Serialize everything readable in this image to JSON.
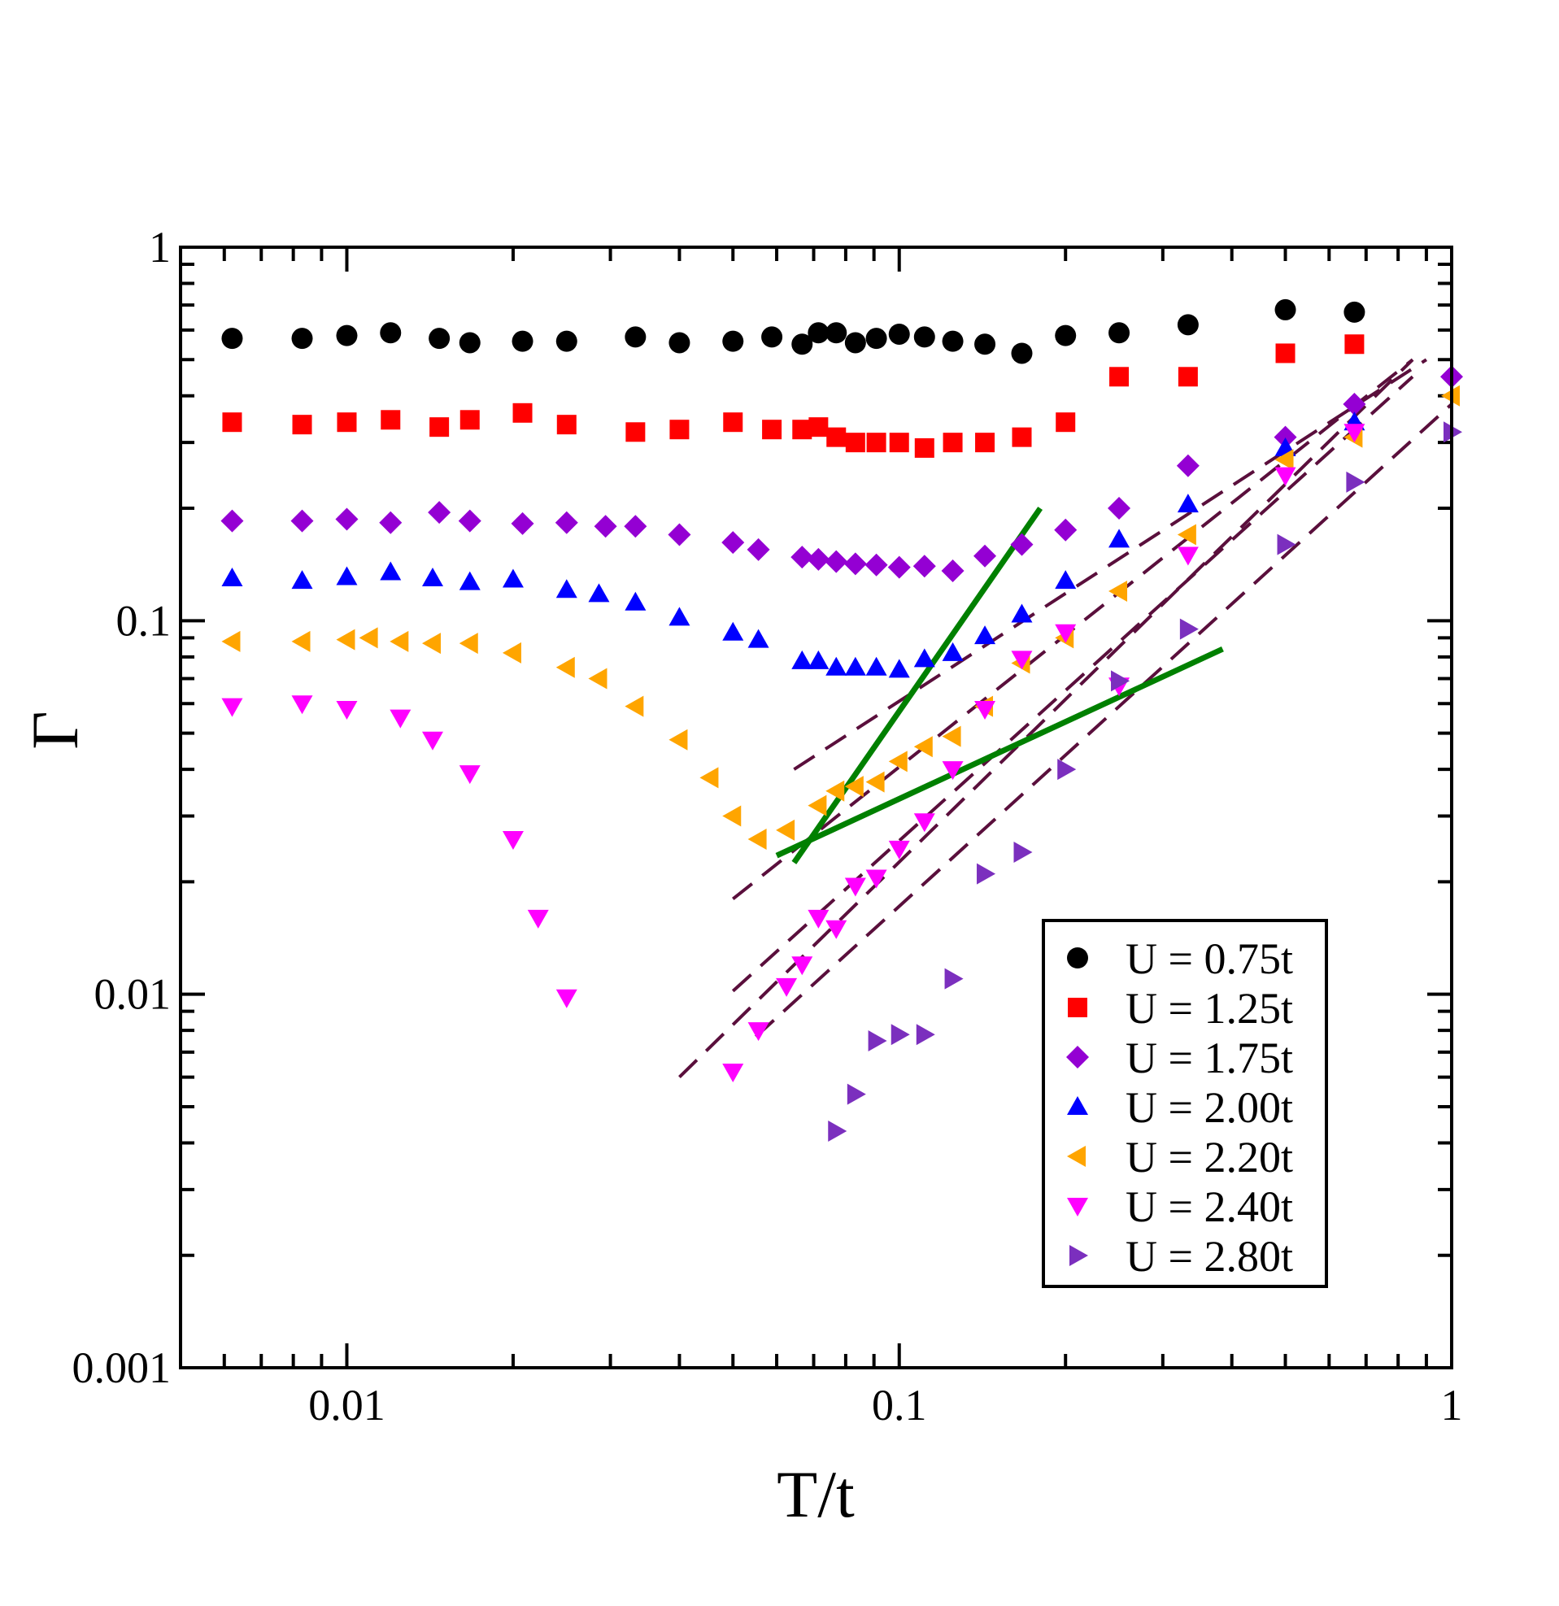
{
  "chart_data": {
    "type": "scatter",
    "title": "",
    "xlabel": "T/t",
    "ylabel": "Γ",
    "xscale": "log",
    "yscale": "log",
    "xlim": [
      0.005,
      1
    ],
    "ylim": [
      0.001,
      1
    ],
    "x_ticks": [
      {
        "value": 0.01,
        "label": "0.01"
      },
      {
        "value": 0.1,
        "label": "0.1"
      },
      {
        "value": 1,
        "label": "1"
      }
    ],
    "y_ticks": [
      {
        "value": 0.001,
        "label": "0.001"
      },
      {
        "value": 0.01,
        "label": "0.01"
      },
      {
        "value": 0.1,
        "label": "0.1"
      },
      {
        "value": 1,
        "label": "1"
      }
    ],
    "legend_position": "bottom-right",
    "series": [
      {
        "name": "U = 0.75t",
        "marker": "circle",
        "color": "#000000",
        "points": [
          [
            0.0062,
            0.57
          ],
          [
            0.0083,
            0.57
          ],
          [
            0.01,
            0.58
          ],
          [
            0.012,
            0.59
          ],
          [
            0.0147,
            0.57
          ],
          [
            0.0167,
            0.555
          ],
          [
            0.0208,
            0.56
          ],
          [
            0.025,
            0.56
          ],
          [
            0.0333,
            0.575
          ],
          [
            0.04,
            0.555
          ],
          [
            0.05,
            0.56
          ],
          [
            0.0588,
            0.575
          ],
          [
            0.0667,
            0.55
          ],
          [
            0.0714,
            0.59
          ],
          [
            0.0769,
            0.59
          ],
          [
            0.0833,
            0.555
          ],
          [
            0.0909,
            0.57
          ],
          [
            0.1,
            0.585
          ],
          [
            0.1111,
            0.575
          ],
          [
            0.125,
            0.56
          ],
          [
            0.1429,
            0.55
          ],
          [
            0.1667,
            0.52
          ],
          [
            0.2,
            0.58
          ],
          [
            0.25,
            0.59
          ],
          [
            0.3333,
            0.62
          ],
          [
            0.5,
            0.68
          ],
          [
            0.6667,
            0.67
          ]
        ]
      },
      {
        "name": "U = 1.25t",
        "marker": "square",
        "color": "#ff0000",
        "points": [
          [
            0.0062,
            0.34
          ],
          [
            0.0083,
            0.335
          ],
          [
            0.01,
            0.34
          ],
          [
            0.012,
            0.345
          ],
          [
            0.0147,
            0.33
          ],
          [
            0.0167,
            0.345
          ],
          [
            0.0208,
            0.36
          ],
          [
            0.025,
            0.335
          ],
          [
            0.0333,
            0.32
          ],
          [
            0.04,
            0.325
          ],
          [
            0.05,
            0.34
          ],
          [
            0.0588,
            0.325
          ],
          [
            0.0667,
            0.325
          ],
          [
            0.0714,
            0.33
          ],
          [
            0.0769,
            0.31
          ],
          [
            0.0833,
            0.3
          ],
          [
            0.0909,
            0.3
          ],
          [
            0.1,
            0.3
          ],
          [
            0.1111,
            0.29
          ],
          [
            0.125,
            0.3
          ],
          [
            0.1429,
            0.3
          ],
          [
            0.1667,
            0.31
          ],
          [
            0.2,
            0.34
          ],
          [
            0.25,
            0.45
          ],
          [
            0.3333,
            0.45
          ],
          [
            0.5,
            0.52
          ],
          [
            0.6667,
            0.55
          ]
        ]
      },
      {
        "name": "U = 1.75t",
        "marker": "diamond",
        "color": "#9400d3",
        "points": [
          [
            0.0062,
            0.185
          ],
          [
            0.0083,
            0.185
          ],
          [
            0.01,
            0.187
          ],
          [
            0.012,
            0.183
          ],
          [
            0.0147,
            0.195
          ],
          [
            0.0167,
            0.185
          ],
          [
            0.0208,
            0.182
          ],
          [
            0.025,
            0.183
          ],
          [
            0.0294,
            0.179
          ],
          [
            0.0333,
            0.179
          ],
          [
            0.04,
            0.17
          ],
          [
            0.05,
            0.162
          ],
          [
            0.0556,
            0.155
          ],
          [
            0.0667,
            0.148
          ],
          [
            0.0714,
            0.146
          ],
          [
            0.0769,
            0.144
          ],
          [
            0.0833,
            0.142
          ],
          [
            0.0909,
            0.141
          ],
          [
            0.1,
            0.139
          ],
          [
            0.1111,
            0.14
          ],
          [
            0.125,
            0.136
          ],
          [
            0.1429,
            0.149
          ],
          [
            0.1667,
            0.16
          ],
          [
            0.2,
            0.175
          ],
          [
            0.25,
            0.2
          ],
          [
            0.3333,
            0.26
          ],
          [
            0.5,
            0.31
          ],
          [
            0.6667,
            0.38
          ],
          [
            1.0,
            0.45
          ]
        ]
      },
      {
        "name": "U = 2.00t",
        "marker": "triangle-up",
        "color": "#0000ff",
        "points": [
          [
            0.0062,
            0.13
          ],
          [
            0.0083,
            0.128
          ],
          [
            0.01,
            0.131
          ],
          [
            0.012,
            0.135
          ],
          [
            0.0143,
            0.13
          ],
          [
            0.0167,
            0.127
          ],
          [
            0.02,
            0.129
          ],
          [
            0.025,
            0.121
          ],
          [
            0.0286,
            0.118
          ],
          [
            0.0333,
            0.112
          ],
          [
            0.04,
            0.102
          ],
          [
            0.05,
            0.093
          ],
          [
            0.0556,
            0.089
          ],
          [
            0.0667,
            0.078
          ],
          [
            0.0714,
            0.078
          ],
          [
            0.0769,
            0.075
          ],
          [
            0.0833,
            0.075
          ],
          [
            0.0909,
            0.075
          ],
          [
            0.1,
            0.074
          ],
          [
            0.1111,
            0.079
          ],
          [
            0.125,
            0.082
          ],
          [
            0.1429,
            0.091
          ],
          [
            0.1667,
            0.104
          ],
          [
            0.2,
            0.128
          ],
          [
            0.25,
            0.165
          ],
          [
            0.3333,
            0.205
          ],
          [
            0.5,
            0.29
          ],
          [
            0.6667,
            0.34
          ]
        ]
      },
      {
        "name": "U = 2.20t",
        "marker": "triangle-left",
        "color": "#ffa500",
        "points": [
          [
            0.0062,
            0.088
          ],
          [
            0.0083,
            0.088
          ],
          [
            0.01,
            0.089
          ],
          [
            0.011,
            0.09
          ],
          [
            0.0125,
            0.088
          ],
          [
            0.0143,
            0.087
          ],
          [
            0.0167,
            0.087
          ],
          [
            0.02,
            0.082
          ],
          [
            0.025,
            0.075
          ],
          [
            0.0286,
            0.07
          ],
          [
            0.0333,
            0.059
          ],
          [
            0.04,
            0.048
          ],
          [
            0.0455,
            0.038
          ],
          [
            0.05,
            0.03
          ],
          [
            0.0556,
            0.026
          ],
          [
            0.0625,
            0.0275
          ],
          [
            0.0714,
            0.032
          ],
          [
            0.0769,
            0.035
          ],
          [
            0.0833,
            0.036
          ],
          [
            0.0909,
            0.037
          ],
          [
            0.1,
            0.042
          ],
          [
            0.1111,
            0.046
          ],
          [
            0.125,
            0.049
          ],
          [
            0.1429,
            0.059
          ],
          [
            0.1667,
            0.077
          ],
          [
            0.2,
            0.09
          ],
          [
            0.25,
            0.12
          ],
          [
            0.3333,
            0.17
          ],
          [
            0.5,
            0.27
          ],
          [
            0.6667,
            0.31
          ],
          [
            1.0,
            0.4
          ]
        ]
      },
      {
        "name": "U = 2.40t",
        "marker": "triangle-down",
        "color": "#ff00ff",
        "points": [
          [
            0.0062,
            0.059
          ],
          [
            0.0083,
            0.06
          ],
          [
            0.01,
            0.058
          ],
          [
            0.0125,
            0.055
          ],
          [
            0.0143,
            0.048
          ],
          [
            0.0167,
            0.039
          ],
          [
            0.02,
            0.026
          ],
          [
            0.0222,
            0.016
          ],
          [
            0.025,
            0.0098
          ],
          [
            0.05,
            0.0062
          ],
          [
            0.0556,
            0.008
          ],
          [
            0.0625,
            0.0105
          ],
          [
            0.0667,
            0.012
          ],
          [
            0.0714,
            0.016
          ],
          [
            0.0769,
            0.015
          ],
          [
            0.0833,
            0.0195
          ],
          [
            0.0909,
            0.0205
          ],
          [
            0.1,
            0.0245
          ],
          [
            0.1111,
            0.029
          ],
          [
            0.125,
            0.04
          ],
          [
            0.1429,
            0.058
          ],
          [
            0.1667,
            0.079
          ],
          [
            0.2,
            0.093
          ],
          [
            0.25,
            0.067
          ],
          [
            0.3333,
            0.15
          ],
          [
            0.5,
            0.245
          ],
          [
            0.6667,
            0.32
          ]
        ]
      },
      {
        "name": "U = 2.80t",
        "marker": "triangle-right",
        "color": "#7b2fbe",
        "points": [
          [
            0.0769,
            0.0043
          ],
          [
            0.0833,
            0.0054
          ],
          [
            0.0909,
            0.0075
          ],
          [
            0.1,
            0.0078
          ],
          [
            0.1111,
            0.0078
          ],
          [
            0.125,
            0.011
          ],
          [
            0.1429,
            0.021
          ],
          [
            0.1667,
            0.024
          ],
          [
            0.2,
            0.04
          ],
          [
            0.25,
            0.069
          ],
          [
            0.3333,
            0.095
          ],
          [
            0.5,
            0.16
          ],
          [
            0.6667,
            0.235
          ],
          [
            1.0,
            0.32
          ]
        ]
      }
    ],
    "fit_lines": [
      {
        "style": "dashed",
        "color": "#5a0f3c",
        "x": [
          0.0645,
          0.9
        ],
        "y": [
          0.04,
          0.5
        ]
      },
      {
        "style": "dashed",
        "color": "#5a0f3c",
        "x": [
          0.05,
          0.85
        ],
        "y": [
          0.018,
          0.5
        ]
      },
      {
        "style": "dashed",
        "color": "#5a0f3c",
        "x": [
          0.05,
          0.85
        ],
        "y": [
          0.0102,
          0.45
        ]
      },
      {
        "style": "dashed",
        "color": "#5a0f3c",
        "x": [
          0.04,
          0.85
        ],
        "y": [
          0.006,
          0.5
        ]
      },
      {
        "style": "dashed",
        "color": "#5a0f3c",
        "x": [
          0.055,
          1.0
        ],
        "y": [
          0.0077,
          0.38
        ]
      }
    ],
    "guide_lines": [
      {
        "style": "solid",
        "color": "#008000",
        "x": [
          0.0645,
          0.18
        ],
        "y": [
          0.0225,
          0.2
        ]
      },
      {
        "style": "solid",
        "color": "#008000",
        "x": [
          0.06,
          0.385
        ],
        "y": [
          0.0235,
          0.084
        ]
      }
    ]
  }
}
